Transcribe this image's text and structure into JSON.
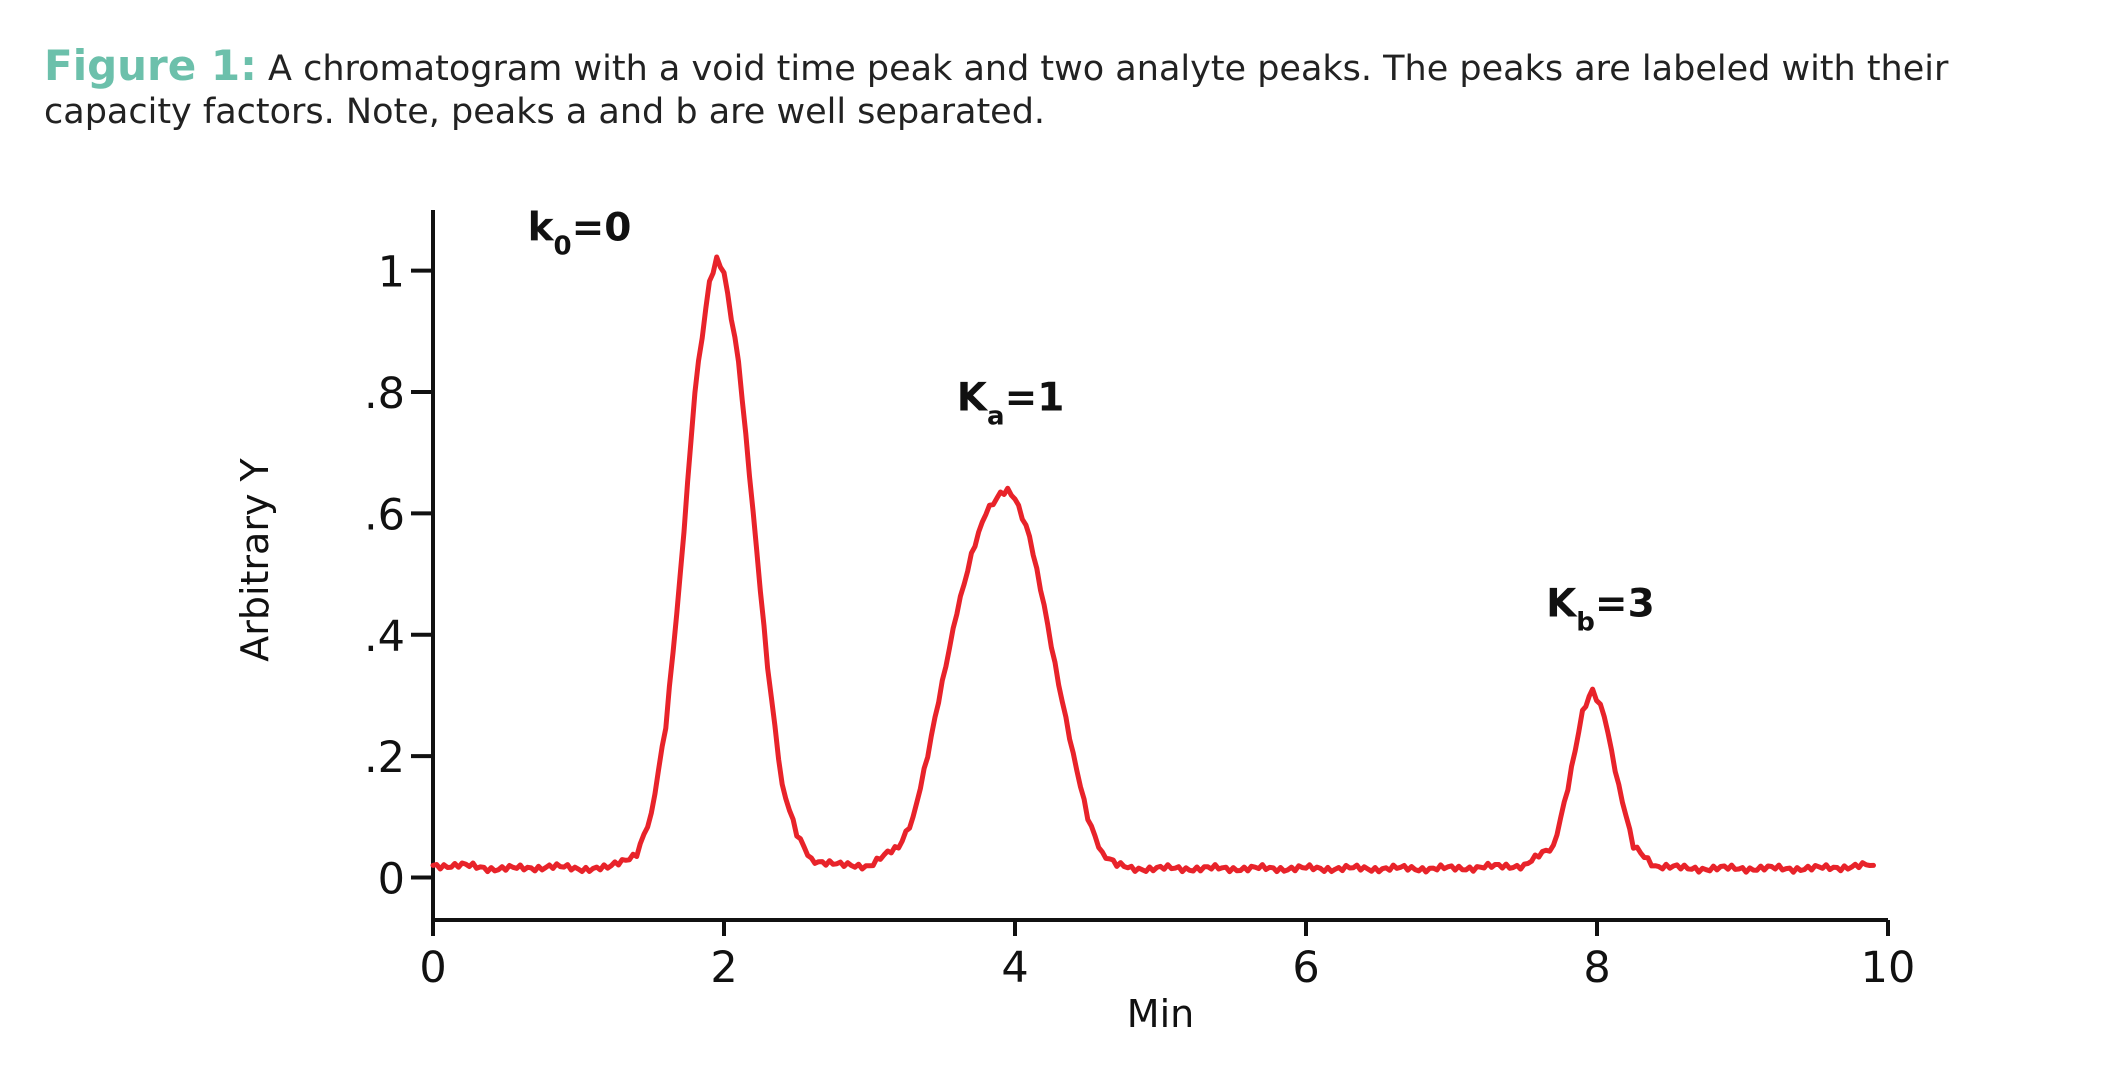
{
  "caption": {
    "label": "Figure 1:",
    "label_color": "#6cc0ab",
    "text": " A chromatogram with a void time peak and two analyte peaks. The peaks are labeled with their capacity factors. Note, peaks a and b are well separated."
  },
  "chart_data": {
    "type": "line",
    "title": "",
    "xlabel": "Min",
    "ylabel": "Arbitrary Y",
    "xlim": [
      0,
      10
    ],
    "ylim": [
      -0.07,
      1.1
    ],
    "x_ticks": [
      {
        "value": 0,
        "label": "0"
      },
      {
        "value": 2,
        "label": "2"
      },
      {
        "value": 4,
        "label": "4"
      },
      {
        "value": 6,
        "label": "6"
      },
      {
        "value": 8,
        "label": "8"
      },
      {
        "value": 10,
        "label": "10"
      }
    ],
    "y_ticks": [
      {
        "value": 0,
        "label": "0"
      },
      {
        "value": 0.2,
        "label": ".2"
      },
      {
        "value": 0.4,
        "label": ".4"
      },
      {
        "value": 0.6,
        "label": ".6"
      },
      {
        "value": 0.8,
        "label": ".8"
      },
      {
        "value": 1.0,
        "label": "1"
      }
    ],
    "grid": false,
    "series_color": "#e8232a",
    "series": [
      {
        "x": [
          0.0,
          0.2,
          0.4,
          0.6,
          0.8,
          1.0,
          1.2,
          1.4,
          1.5,
          1.6,
          1.7,
          1.8,
          1.9,
          1.95,
          2.0,
          2.1,
          2.2,
          2.3,
          2.4,
          2.5,
          2.6,
          2.8,
          3.0,
          3.2,
          3.3,
          3.4,
          3.5,
          3.6,
          3.7,
          3.8,
          3.9,
          3.95,
          4.0,
          4.1,
          4.2,
          4.3,
          4.4,
          4.5,
          4.6,
          4.7,
          4.8,
          5.0,
          5.5,
          6.0,
          6.5,
          7.0,
          7.5,
          7.7,
          7.8,
          7.9,
          7.97,
          8.05,
          8.15,
          8.25,
          8.4,
          8.6,
          9.0,
          9.5,
          9.9
        ],
        "y": [
          0.02,
          0.02,
          0.015,
          0.015,
          0.018,
          0.015,
          0.015,
          0.04,
          0.1,
          0.25,
          0.5,
          0.8,
          0.98,
          1.02,
          1.0,
          0.85,
          0.6,
          0.35,
          0.15,
          0.07,
          0.03,
          0.02,
          0.02,
          0.05,
          0.1,
          0.2,
          0.32,
          0.44,
          0.53,
          0.6,
          0.635,
          0.64,
          0.625,
          0.56,
          0.45,
          0.32,
          0.2,
          0.1,
          0.04,
          0.02,
          0.015,
          0.015,
          0.015,
          0.015,
          0.015,
          0.015,
          0.02,
          0.05,
          0.15,
          0.27,
          0.31,
          0.27,
          0.15,
          0.05,
          0.02,
          0.015,
          0.015,
          0.015,
          0.02
        ]
      }
    ],
    "annotations": [
      {
        "main": "k",
        "sub": "0",
        "tail": "=0",
        "x": 0.65,
        "y": 1.05
      },
      {
        "main": "K",
        "sub": "a",
        "tail": "=1",
        "x": 3.6,
        "y": 0.77
      },
      {
        "main": "K",
        "sub": "b",
        "tail": "=3",
        "x": 7.65,
        "y": 0.43
      }
    ]
  }
}
